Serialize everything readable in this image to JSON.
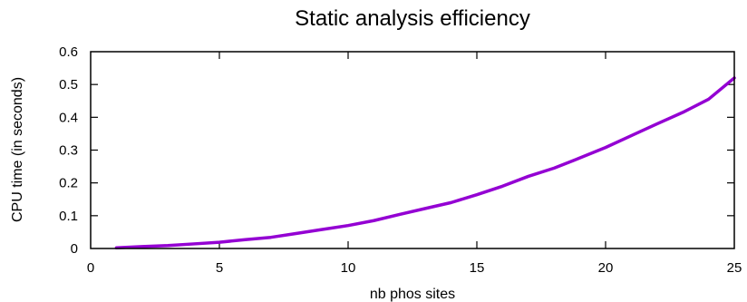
{
  "chart_data": {
    "type": "line",
    "title": "Static analysis efficiency",
    "xlabel": "nb phos sites",
    "ylabel": "CPU time (in seconds)",
    "xlim": [
      0,
      25
    ],
    "ylim": [
      0,
      0.6
    ],
    "x_ticks": [
      0,
      5,
      10,
      15,
      20,
      25
    ],
    "x_tick_labels": [
      "0",
      "5",
      "10",
      "15",
      "20",
      "25"
    ],
    "y_ticks": [
      0,
      0.1,
      0.2,
      0.3,
      0.4,
      0.5,
      0.6
    ],
    "y_tick_labels": [
      "0",
      "0.1",
      "0.2",
      "0.3",
      "0.4",
      "0.5",
      "0.6"
    ],
    "grid": false,
    "legend": "none",
    "series": [
      {
        "color": "#9400D3",
        "x": [
          1,
          2,
          3,
          4,
          5,
          6,
          7,
          8,
          9,
          10,
          11,
          12,
          13,
          14,
          15,
          16,
          17,
          18,
          19,
          20,
          21,
          22,
          23,
          24,
          25
        ],
        "y": [
          0.002,
          0.006,
          0.009,
          0.014,
          0.019,
          0.027,
          0.034,
          0.046,
          0.058,
          0.07,
          0.085,
          0.104,
          0.122,
          0.14,
          0.164,
          0.19,
          0.22,
          0.245,
          0.276,
          0.308,
          0.344,
          0.38,
          0.415,
          0.455,
          0.52
        ]
      }
    ]
  }
}
